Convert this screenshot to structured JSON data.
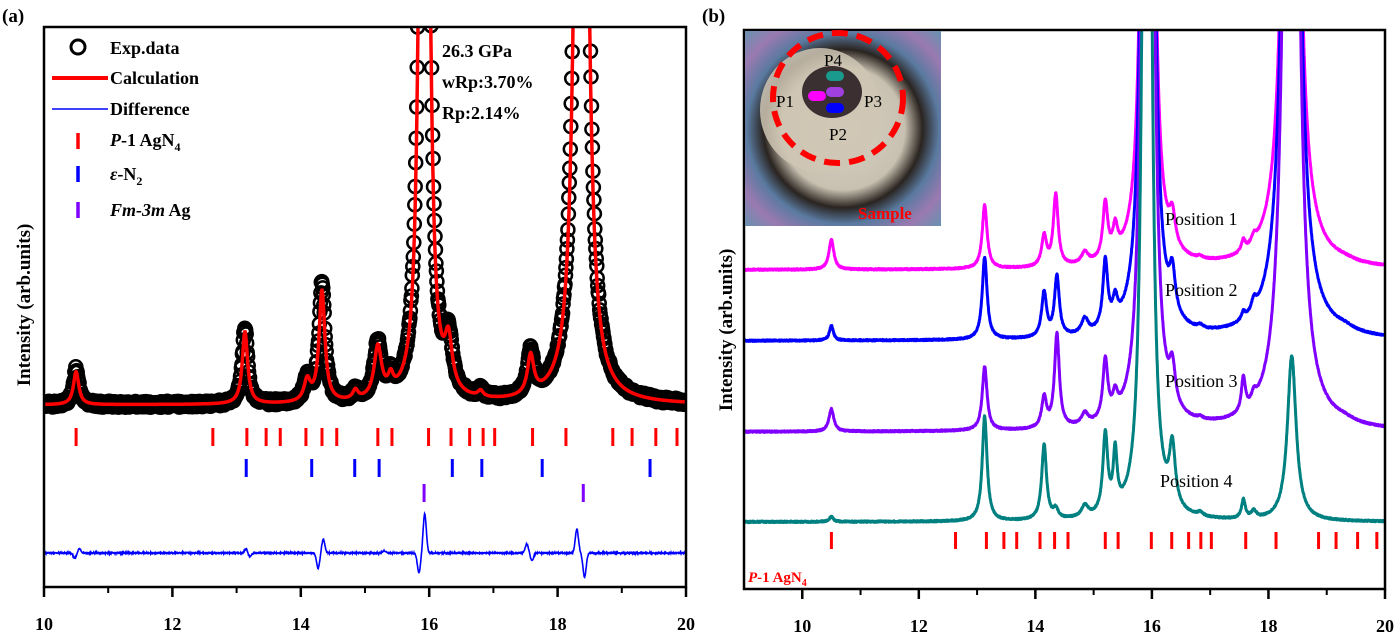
{
  "chart_data": [
    {
      "panel_label": "(a)",
      "type": "line",
      "title": "",
      "xlabel": "",
      "ylabel": "Intensity (arb.units)",
      "xlim": [
        10,
        20
      ],
      "x_ticks": [
        10,
        12,
        14,
        16,
        18,
        20
      ],
      "x_minor_ticks": [
        11,
        13,
        15,
        17,
        19
      ],
      "annotation": [
        "26.3 GPa",
        "wRp:3.70%",
        "Rp:2.14%"
      ],
      "legend": {
        "placement": "top-left",
        "entries": [
          {
            "label": "Exp.data",
            "marker": "open-circle",
            "color": "#000000"
          },
          {
            "label": "Calculation",
            "marker": "line-thick",
            "color": "#ff0000"
          },
          {
            "label": "Difference",
            "marker": "line-thin",
            "color": "#0000ff"
          },
          {
            "label_italic": "P",
            "label_rest": "-1 AgN",
            "sub": "4",
            "marker": "tick",
            "color": "#ff0000"
          },
          {
            "label_italic": "ε",
            "label_rest": "-N",
            "sub": "2",
            "marker": "tick",
            "color": "#0000ff"
          },
          {
            "label_italic": "Fm-3m",
            "label_rest": " Ag",
            "sub": "",
            "marker": "tick",
            "color": "#8000ff"
          }
        ]
      },
      "peaks_relative": [
        {
          "x": 10.5,
          "h": 0.11,
          "w": 0.05
        },
        {
          "x": 13.13,
          "h": 0.24,
          "w": 0.05
        },
        {
          "x": 14.1,
          "h": 0.07,
          "w": 0.06
        },
        {
          "x": 14.33,
          "h": 0.37,
          "w": 0.055
        },
        {
          "x": 14.85,
          "h": 0.03,
          "w": 0.05
        },
        {
          "x": 15.2,
          "h": 0.17,
          "w": 0.07
        },
        {
          "x": 15.4,
          "h": 0.05,
          "w": 0.05
        },
        {
          "x": 15.88,
          "h": 1.8,
          "w": 0.06
        },
        {
          "x": 15.97,
          "h": 1.8,
          "w": 0.06
        },
        {
          "x": 16.3,
          "h": 0.16,
          "w": 0.07
        },
        {
          "x": 16.8,
          "h": 0.02,
          "w": 0.05
        },
        {
          "x": 17.58,
          "h": 0.13,
          "w": 0.06
        },
        {
          "x": 18.32,
          "h": 1.9,
          "w": 0.08
        },
        {
          "x": 18.42,
          "h": 1.9,
          "w": 0.08
        }
      ],
      "reflection_ticks": [
        {
          "phase": "P-1 AgN4",
          "color": "#ff0000",
          "positions": [
            10.5,
            12.63,
            13.16,
            13.46,
            13.68,
            14.08,
            14.33,
            14.56,
            15.2,
            15.42,
            15.99,
            16.34,
            16.63,
            16.84,
            17.02,
            17.61,
            18.13,
            18.86,
            19.16,
            19.53,
            19.86
          ]
        },
        {
          "phase": "ε-N2",
          "color": "#0000ff",
          "positions": [
            13.15,
            14.17,
            14.84,
            15.22,
            16.36,
            16.82,
            17.76,
            19.44
          ]
        },
        {
          "phase": "Fm-3m Ag",
          "color": "#8000ff",
          "positions": [
            15.92,
            18.4
          ]
        }
      ],
      "difference_features": [
        {
          "x": 10.48,
          "amp": -0.35
        },
        {
          "x": 10.55,
          "amp": 0.3
        },
        {
          "x": 13.15,
          "amp": 0.3
        },
        {
          "x": 13.2,
          "amp": -0.25
        },
        {
          "x": 14.27,
          "amp": -1.0
        },
        {
          "x": 14.35,
          "amp": 0.9
        },
        {
          "x": 15.3,
          "amp": 0.15
        },
        {
          "x": 15.84,
          "amp": -1.3
        },
        {
          "x": 15.93,
          "amp": 2.6
        },
        {
          "x": 17.52,
          "amp": 0.6
        },
        {
          "x": 17.6,
          "amp": -0.5
        },
        {
          "x": 18.3,
          "amp": 1.6
        },
        {
          "x": 18.42,
          "amp": -1.6
        }
      ]
    },
    {
      "panel_label": "(b)",
      "type": "line",
      "title": "",
      "xlabel": "",
      "ylabel": "Intensity (arb.units)",
      "xlim": [
        9,
        20
      ],
      "x_ticks": [
        10,
        12,
        14,
        16,
        18,
        20
      ],
      "x_minor_ticks": [
        11,
        13,
        15,
        17,
        19
      ],
      "reference_label_italic": "P",
      "reference_label_rest": "-1 AgN",
      "reference_label_sub": "4",
      "reference_color": "#ff0000",
      "reference_ticks": [
        10.5,
        12.63,
        13.16,
        13.46,
        13.68,
        14.08,
        14.33,
        14.56,
        15.2,
        15.42,
        15.99,
        16.34,
        16.63,
        16.84,
        17.02,
        17.61,
        18.13,
        18.86,
        19.16,
        19.53,
        19.86
      ],
      "series": [
        {
          "name": "Position 1",
          "color": "#ff00ff",
          "peaks": [
            {
              "x": 10.5,
              "h": 0.4,
              "w": 0.05
            },
            {
              "x": 13.13,
              "h": 0.85,
              "w": 0.05
            },
            {
              "x": 14.15,
              "h": 0.4,
              "w": 0.05
            },
            {
              "x": 14.35,
              "h": 0.95,
              "w": 0.05
            },
            {
              "x": 14.85,
              "h": 0.15,
              "w": 0.07
            },
            {
              "x": 15.2,
              "h": 0.75,
              "w": 0.05
            },
            {
              "x": 15.37,
              "h": 0.35,
              "w": 0.05
            },
            {
              "x": 15.88,
              "h": 8,
              "w": 0.07
            },
            {
              "x": 15.98,
              "h": 8,
              "w": 0.07
            },
            {
              "x": 16.35,
              "h": 0.4,
              "w": 0.06
            },
            {
              "x": 16.83,
              "h": 0.03,
              "w": 0.05
            },
            {
              "x": 17.57,
              "h": 0.15,
              "w": 0.04
            },
            {
              "x": 17.75,
              "h": 0.1,
              "w": 0.05
            },
            {
              "x": 18.35,
              "h": 8,
              "w": 0.1
            },
            {
              "x": 18.43,
              "h": 8,
              "w": 0.1
            },
            {
              "x": 19.3,
              "h": 0.03,
              "w": 0.2
            }
          ]
        },
        {
          "name": "Position 2",
          "color": "#0000ff",
          "peaks": [
            {
              "x": 10.5,
              "h": 0.2,
              "w": 0.04
            },
            {
              "x": 13.13,
              "h": 1.1,
              "w": 0.05
            },
            {
              "x": 14.15,
              "h": 0.6,
              "w": 0.05
            },
            {
              "x": 14.37,
              "h": 0.8,
              "w": 0.05
            },
            {
              "x": 14.85,
              "h": 0.2,
              "w": 0.07
            },
            {
              "x": 15.2,
              "h": 0.9,
              "w": 0.05
            },
            {
              "x": 15.37,
              "h": 0.3,
              "w": 0.05
            },
            {
              "x": 15.88,
              "h": 9,
              "w": 0.07
            },
            {
              "x": 15.98,
              "h": 9,
              "w": 0.07
            },
            {
              "x": 16.35,
              "h": 0.55,
              "w": 0.06
            },
            {
              "x": 16.83,
              "h": 0.04,
              "w": 0.05
            },
            {
              "x": 17.57,
              "h": 0.1,
              "w": 0.04
            },
            {
              "x": 17.75,
              "h": 0.15,
              "w": 0.05
            },
            {
              "x": 18.35,
              "h": 9,
              "w": 0.1
            },
            {
              "x": 18.43,
              "h": 9,
              "w": 0.1
            },
            {
              "x": 19.3,
              "h": 0.05,
              "w": 0.2
            }
          ]
        },
        {
          "name": "Position 3",
          "color": "#8000ff",
          "peaks": [
            {
              "x": 10.5,
              "h": 0.3,
              "w": 0.05
            },
            {
              "x": 13.13,
              "h": 0.85,
              "w": 0.05
            },
            {
              "x": 14.15,
              "h": 0.4,
              "w": 0.05
            },
            {
              "x": 14.37,
              "h": 1.25,
              "w": 0.05
            },
            {
              "x": 14.85,
              "h": 0.15,
              "w": 0.07
            },
            {
              "x": 15.2,
              "h": 0.8,
              "w": 0.05
            },
            {
              "x": 15.37,
              "h": 0.25,
              "w": 0.05
            },
            {
              "x": 15.88,
              "h": 9,
              "w": 0.07
            },
            {
              "x": 15.98,
              "h": 9,
              "w": 0.07
            },
            {
              "x": 16.35,
              "h": 0.5,
              "w": 0.06
            },
            {
              "x": 16.83,
              "h": 0.03,
              "w": 0.05
            },
            {
              "x": 17.57,
              "h": 0.45,
              "w": 0.04
            },
            {
              "x": 17.75,
              "h": 0.12,
              "w": 0.05
            },
            {
              "x": 18.35,
              "h": 9,
              "w": 0.1
            },
            {
              "x": 18.43,
              "h": 9,
              "w": 0.1
            },
            {
              "x": 19.3,
              "h": 0.04,
              "w": 0.2
            }
          ]
        },
        {
          "name": "Position 4",
          "color": "#008080",
          "peaks": [
            {
              "x": 10.5,
              "h": 0.07,
              "w": 0.04
            },
            {
              "x": 13.13,
              "h": 1.4,
              "w": 0.05
            },
            {
              "x": 14.15,
              "h": 1.0,
              "w": 0.05
            },
            {
              "x": 14.35,
              "h": 0.12,
              "w": 0.05
            },
            {
              "x": 14.85,
              "h": 0.15,
              "w": 0.07
            },
            {
              "x": 15.2,
              "h": 1.05,
              "w": 0.05
            },
            {
              "x": 15.37,
              "h": 0.75,
              "w": 0.04
            },
            {
              "x": 15.88,
              "h": 9,
              "w": 0.06
            },
            {
              "x": 15.95,
              "h": 9,
              "w": 0.06
            },
            {
              "x": 16.35,
              "h": 0.8,
              "w": 0.06
            },
            {
              "x": 16.83,
              "h": 0.05,
              "w": 0.05
            },
            {
              "x": 17.57,
              "h": 0.25,
              "w": 0.04
            },
            {
              "x": 17.75,
              "h": 0.1,
              "w": 0.05
            },
            {
              "x": 18.4,
              "h": 2.2,
              "w": 0.09
            }
          ]
        }
      ],
      "inset": {
        "markers": [
          {
            "label": "P4",
            "color": "#1a9a8c"
          },
          {
            "label": "P1",
            "color": "#ff00ff"
          },
          {
            "label": "P3",
            "color": "#a040e0"
          },
          {
            "label": "P2",
            "color": "#0000ff"
          }
        ],
        "sample_label": "Sample",
        "sample_label_color": "#ff0000"
      }
    }
  ]
}
